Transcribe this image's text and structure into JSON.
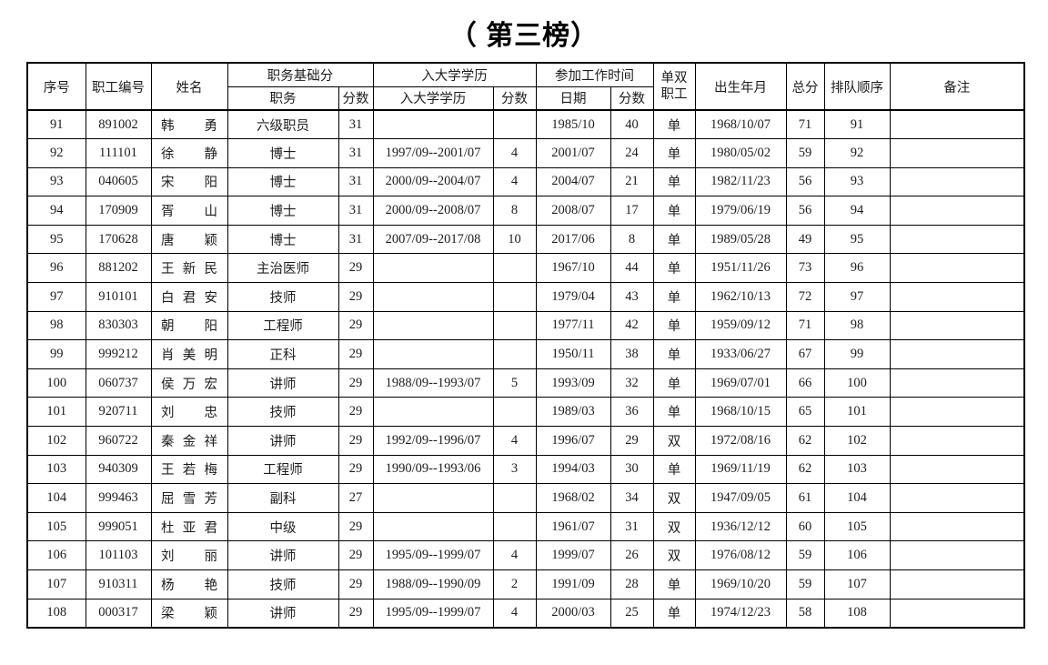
{
  "page_title": "（ 第三榜）",
  "table": {
    "header": {
      "serial": "序号",
      "employee_id": "职工编号",
      "name": "姓名",
      "position_base_score": "职务基础分",
      "position": "职务",
      "position_score_label": "分数",
      "university_education_group": "入大学学历",
      "university_education": "入大学学历",
      "education_score_label": "分数",
      "work_start_time": "参加工作时间",
      "date": "日期",
      "work_score_label": "分数",
      "single_double_worker": "单双职工",
      "birth_date": "出生年月",
      "total_score": "总分",
      "queue_order": "排队顺序",
      "remarks": "备注"
    },
    "columns": [
      "serial",
      "employee-id",
      "name",
      "position",
      "position-score",
      "university-education",
      "education-score",
      "work-date",
      "work-score",
      "single-double",
      "birth-date",
      "total-score",
      "queue-order",
      "remarks"
    ],
    "rows": [
      [
        "91",
        "891002",
        "韩勇",
        "六级职员",
        "31",
        "",
        "",
        "1985/10",
        "40",
        "单",
        "1968/10/07",
        "71",
        "91",
        ""
      ],
      [
        "92",
        "111101",
        "徐静",
        "博士",
        "31",
        "1997/09--2001/07",
        "4",
        "2001/07",
        "24",
        "单",
        "1980/05/02",
        "59",
        "92",
        ""
      ],
      [
        "93",
        "040605",
        "宋阳",
        "博士",
        "31",
        "2000/09--2004/07",
        "4",
        "2004/07",
        "21",
        "单",
        "1982/11/23",
        "56",
        "93",
        ""
      ],
      [
        "94",
        "170909",
        "胥山",
        "博士",
        "31",
        "2000/09--2008/07",
        "8",
        "2008/07",
        "17",
        "单",
        "1979/06/19",
        "56",
        "94",
        ""
      ],
      [
        "95",
        "170628",
        "唐颖",
        "博士",
        "31",
        "2007/09--2017/08",
        "10",
        "2017/06",
        "8",
        "单",
        "1989/05/28",
        "49",
        "95",
        ""
      ],
      [
        "96",
        "881202",
        "王新民",
        "主治医师",
        "29",
        "",
        "",
        "1967/10",
        "44",
        "单",
        "1951/11/26",
        "73",
        "96",
        ""
      ],
      [
        "97",
        "910101",
        "白君安",
        "技师",
        "29",
        "",
        "",
        "1979/04",
        "43",
        "单",
        "1962/10/13",
        "72",
        "97",
        ""
      ],
      [
        "98",
        "830303",
        "朝阳",
        "工程师",
        "29",
        "",
        "",
        "1977/11",
        "42",
        "单",
        "1959/09/12",
        "71",
        "98",
        ""
      ],
      [
        "99",
        "999212",
        "肖美明",
        "正科",
        "29",
        "",
        "",
        "1950/11",
        "38",
        "单",
        "1933/06/27",
        "67",
        "99",
        ""
      ],
      [
        "100",
        "060737",
        "侯万宏",
        "讲师",
        "29",
        "1988/09--1993/07",
        "5",
        "1993/09",
        "32",
        "单",
        "1969/07/01",
        "66",
        "100",
        ""
      ],
      [
        "101",
        "920711",
        "刘忠",
        "技师",
        "29",
        "",
        "",
        "1989/03",
        "36",
        "单",
        "1968/10/15",
        "65",
        "101",
        ""
      ],
      [
        "102",
        "960722",
        "秦金祥",
        "讲师",
        "29",
        "1992/09--1996/07",
        "4",
        "1996/07",
        "29",
        "双",
        "1972/08/16",
        "62",
        "102",
        ""
      ],
      [
        "103",
        "940309",
        "王若梅",
        "工程师",
        "29",
        "1990/09--1993/06",
        "3",
        "1994/03",
        "30",
        "单",
        "1969/11/19",
        "62",
        "103",
        ""
      ],
      [
        "104",
        "999463",
        "屈雪芳",
        "副科",
        "27",
        "",
        "",
        "1968/02",
        "34",
        "双",
        "1947/09/05",
        "61",
        "104",
        ""
      ],
      [
        "105",
        "999051",
        "杜亚君",
        "中级",
        "29",
        "",
        "",
        "1961/07",
        "31",
        "双",
        "1936/12/12",
        "60",
        "105",
        ""
      ],
      [
        "106",
        "101103",
        "刘丽",
        "讲师",
        "29",
        "1995/09--1999/07",
        "4",
        "1999/07",
        "26",
        "双",
        "1976/08/12",
        "59",
        "106",
        ""
      ],
      [
        "107",
        "910311",
        "杨艳",
        "技师",
        "29",
        "1988/09--1990/09",
        "2",
        "1991/09",
        "28",
        "单",
        "1969/10/20",
        "59",
        "107",
        ""
      ],
      [
        "108",
        "000317",
        "梁颖",
        "讲师",
        "29",
        "1995/09--1999/07",
        "4",
        "2000/03",
        "25",
        "单",
        "1974/12/23",
        "58",
        "108",
        ""
      ]
    ]
  }
}
